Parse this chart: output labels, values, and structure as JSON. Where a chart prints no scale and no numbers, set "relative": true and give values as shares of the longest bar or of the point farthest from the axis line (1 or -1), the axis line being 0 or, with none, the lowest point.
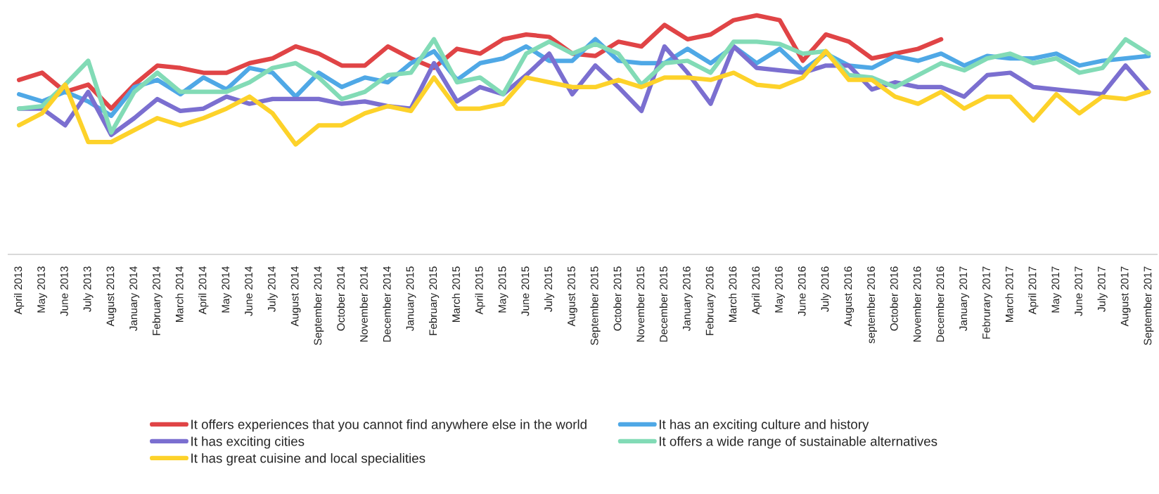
{
  "chart_data": {
    "type": "line",
    "relative": true,
    "grid": false,
    "legend": "bottom",
    "marker": "none",
    "line_style": "solid",
    "categories": [
      "April 2013",
      "May 2013",
      "June 2013",
      "July 2013",
      "August 2013",
      "January 2014",
      "February 2014",
      "March 2014",
      "April 2014",
      "May 2014",
      "June 2014",
      "July 2014",
      "August 2014",
      "September 2014",
      "October 2014",
      "November 2014",
      "December 2014",
      "January 2015",
      "February 2015",
      "March 2015",
      "April 2015",
      "May 2015",
      "June 2015",
      "July 2015",
      "August 2015",
      "September 2015",
      "October 2015",
      "November 2015",
      "December 2015",
      "January 2016",
      "February 2016",
      "March 2016",
      "April 2016",
      "May 2016",
      "June 2016",
      "July 2016",
      "August 2016",
      "september 2016",
      "October 2016",
      "November 2016",
      "December 2016",
      "January 2017",
      "Februrary 2017",
      "March 2017",
      "April 2017",
      "May 2017",
      "June 2017",
      "July 2017",
      "August 2017",
      "September 2017"
    ],
    "series": [
      {
        "name": "It offers experiences that you cannot find anywhere else in the world",
        "color": "#e04446",
        "values": [
          0.73,
          0.76,
          0.68,
          0.71,
          0.61,
          0.71,
          0.79,
          0.78,
          0.76,
          0.76,
          0.8,
          0.82,
          0.87,
          0.84,
          0.79,
          0.79,
          0.87,
          0.82,
          0.78,
          0.86,
          0.84,
          0.9,
          0.92,
          0.91,
          0.84,
          0.83,
          0.89,
          0.87,
          0.96,
          0.9,
          0.92,
          0.98,
          1.0,
          0.98,
          0.81,
          0.92,
          0.89,
          0.82,
          0.84,
          0.86,
          0.9,
          null,
          null,
          null,
          null,
          null,
          null,
          null,
          null,
          null
        ]
      },
      {
        "name": "It has an exciting culture and history",
        "color": "#4fa8e6",
        "values": [
          0.67,
          0.64,
          0.68,
          0.64,
          0.58,
          0.7,
          0.73,
          0.67,
          0.74,
          0.69,
          0.78,
          0.76,
          0.66,
          0.76,
          0.7,
          0.74,
          0.72,
          0.8,
          0.85,
          0.73,
          0.8,
          0.82,
          0.87,
          0.81,
          0.81,
          0.9,
          0.81,
          0.8,
          0.8,
          0.86,
          0.8,
          0.87,
          0.8,
          0.86,
          0.77,
          0.84,
          0.79,
          0.78,
          0.83,
          0.81,
          0.84,
          0.79,
          0.83,
          0.82,
          0.82,
          0.84,
          0.79,
          0.81,
          0.82,
          0.83
        ]
      },
      {
        "name": "It has exciting cities",
        "color": "#7b6fd0",
        "values": [
          0.61,
          0.61,
          0.54,
          0.68,
          0.5,
          0.57,
          0.65,
          0.6,
          0.61,
          0.66,
          0.63,
          0.65,
          0.65,
          0.65,
          0.63,
          0.64,
          0.62,
          0.61,
          0.8,
          0.64,
          0.7,
          0.67,
          0.75,
          0.84,
          0.67,
          0.79,
          0.7,
          0.6,
          0.87,
          0.76,
          0.63,
          0.87,
          0.78,
          0.77,
          0.76,
          0.79,
          0.79,
          0.69,
          0.72,
          0.7,
          0.7,
          0.66,
          0.75,
          0.76,
          0.7,
          0.69,
          0.68,
          0.67,
          0.79,
          0.68
        ]
      },
      {
        "name": "It offers a wide range of sustainable alternatives",
        "color": "#82dbb6",
        "values": [
          0.61,
          0.62,
          0.71,
          0.81,
          0.51,
          0.68,
          0.76,
          0.68,
          0.68,
          0.68,
          0.72,
          0.78,
          0.8,
          0.74,
          0.65,
          0.68,
          0.75,
          0.76,
          0.9,
          0.72,
          0.74,
          0.67,
          0.84,
          0.89,
          0.84,
          0.88,
          0.84,
          0.71,
          0.8,
          0.81,
          0.76,
          0.89,
          0.89,
          0.88,
          0.84,
          0.85,
          0.75,
          0.74,
          0.7,
          0.75,
          0.8,
          0.77,
          0.82,
          0.84,
          0.8,
          0.82,
          0.76,
          0.78,
          0.9,
          0.84
        ]
      },
      {
        "name": "It has great cuisine and local specialities",
        "color": "#fdd22a",
        "values": [
          0.54,
          0.59,
          0.71,
          0.47,
          0.47,
          0.52,
          0.57,
          0.54,
          0.57,
          0.61,
          0.66,
          0.59,
          0.46,
          0.54,
          0.54,
          0.59,
          0.62,
          0.6,
          0.74,
          0.61,
          0.61,
          0.63,
          0.74,
          0.72,
          0.7,
          0.7,
          0.73,
          0.7,
          0.74,
          0.74,
          0.73,
          0.76,
          0.71,
          0.7,
          0.74,
          0.85,
          0.73,
          0.73,
          0.66,
          0.63,
          0.68,
          0.61,
          0.66,
          0.66,
          0.56,
          0.67,
          0.59,
          0.66,
          0.65,
          0.68
        ]
      }
    ]
  }
}
